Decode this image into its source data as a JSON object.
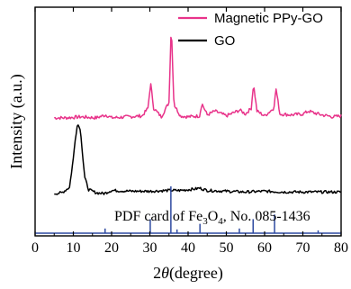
{
  "chart_data": {
    "type": "line",
    "xlabel_parts": [
      "2",
      "θ",
      "(degree)"
    ],
    "ylabel": "Intensity (a.u.)",
    "xlim": [
      0,
      80
    ],
    "xticks": [
      0,
      10,
      20,
      30,
      40,
      50,
      60,
      70,
      80
    ],
    "y_ticks_shown": false,
    "legend_position": "top-right",
    "series": [
      {
        "name": "Magnetic PPy-GO",
        "color": "#e8338a",
        "x": [
          5,
          8,
          12,
          16,
          18.5,
          20,
          24,
          28,
          29.5,
          30.2,
          31,
          33,
          35,
          35.6,
          36.3,
          38,
          40,
          43,
          43.6,
          45,
          47,
          50,
          53.5,
          55,
          56.5,
          57.1,
          58,
          60,
          62.4,
          63,
          64,
          67,
          70,
          71.5,
          73,
          75,
          78,
          80
        ],
        "values": [
          0.02,
          0.02,
          0.03,
          0.02,
          0.05,
          0.02,
          0.03,
          0.04,
          0.12,
          0.38,
          0.12,
          0.03,
          0.18,
          1.0,
          0.16,
          0.04,
          0.03,
          0.04,
          0.17,
          0.05,
          0.09,
          0.04,
          0.1,
          0.06,
          0.12,
          0.37,
          0.09,
          0.04,
          0.12,
          0.32,
          0.06,
          0.05,
          0.06,
          0.09,
          0.07,
          0.05,
          0.03,
          0.04
        ]
      },
      {
        "name": "GO",
        "color": "#000000",
        "x": [
          5,
          7,
          9,
          10,
          10.5,
          11,
          11.3,
          11.6,
          12,
          12.5,
          13,
          14,
          16,
          18,
          20,
          25,
          30,
          35,
          38,
          42,
          43,
          45,
          50,
          55,
          60,
          65,
          70,
          75,
          80
        ],
        "values": [
          0.0,
          0.01,
          0.08,
          0.45,
          0.7,
          0.86,
          0.88,
          0.86,
          0.74,
          0.45,
          0.2,
          0.05,
          0.01,
          0.0,
          0.04,
          0.03,
          0.03,
          0.04,
          0.04,
          0.06,
          0.07,
          0.04,
          0.03,
          0.02,
          0.03,
          0.02,
          0.02,
          0.02,
          0.02
        ]
      }
    ],
    "reference": {
      "label_parts": [
        "PDF card of Fe",
        "3",
        "O",
        "4",
        ", No. 085-1436"
      ],
      "color": "#2e4aa0",
      "positions": [
        18.3,
        30.1,
        35.5,
        37.1,
        43.1,
        53.4,
        57.0,
        62.6,
        74.0
      ],
      "intensities": [
        0.1,
        0.3,
        1.0,
        0.08,
        0.2,
        0.1,
        0.3,
        0.4,
        0.06
      ]
    }
  }
}
